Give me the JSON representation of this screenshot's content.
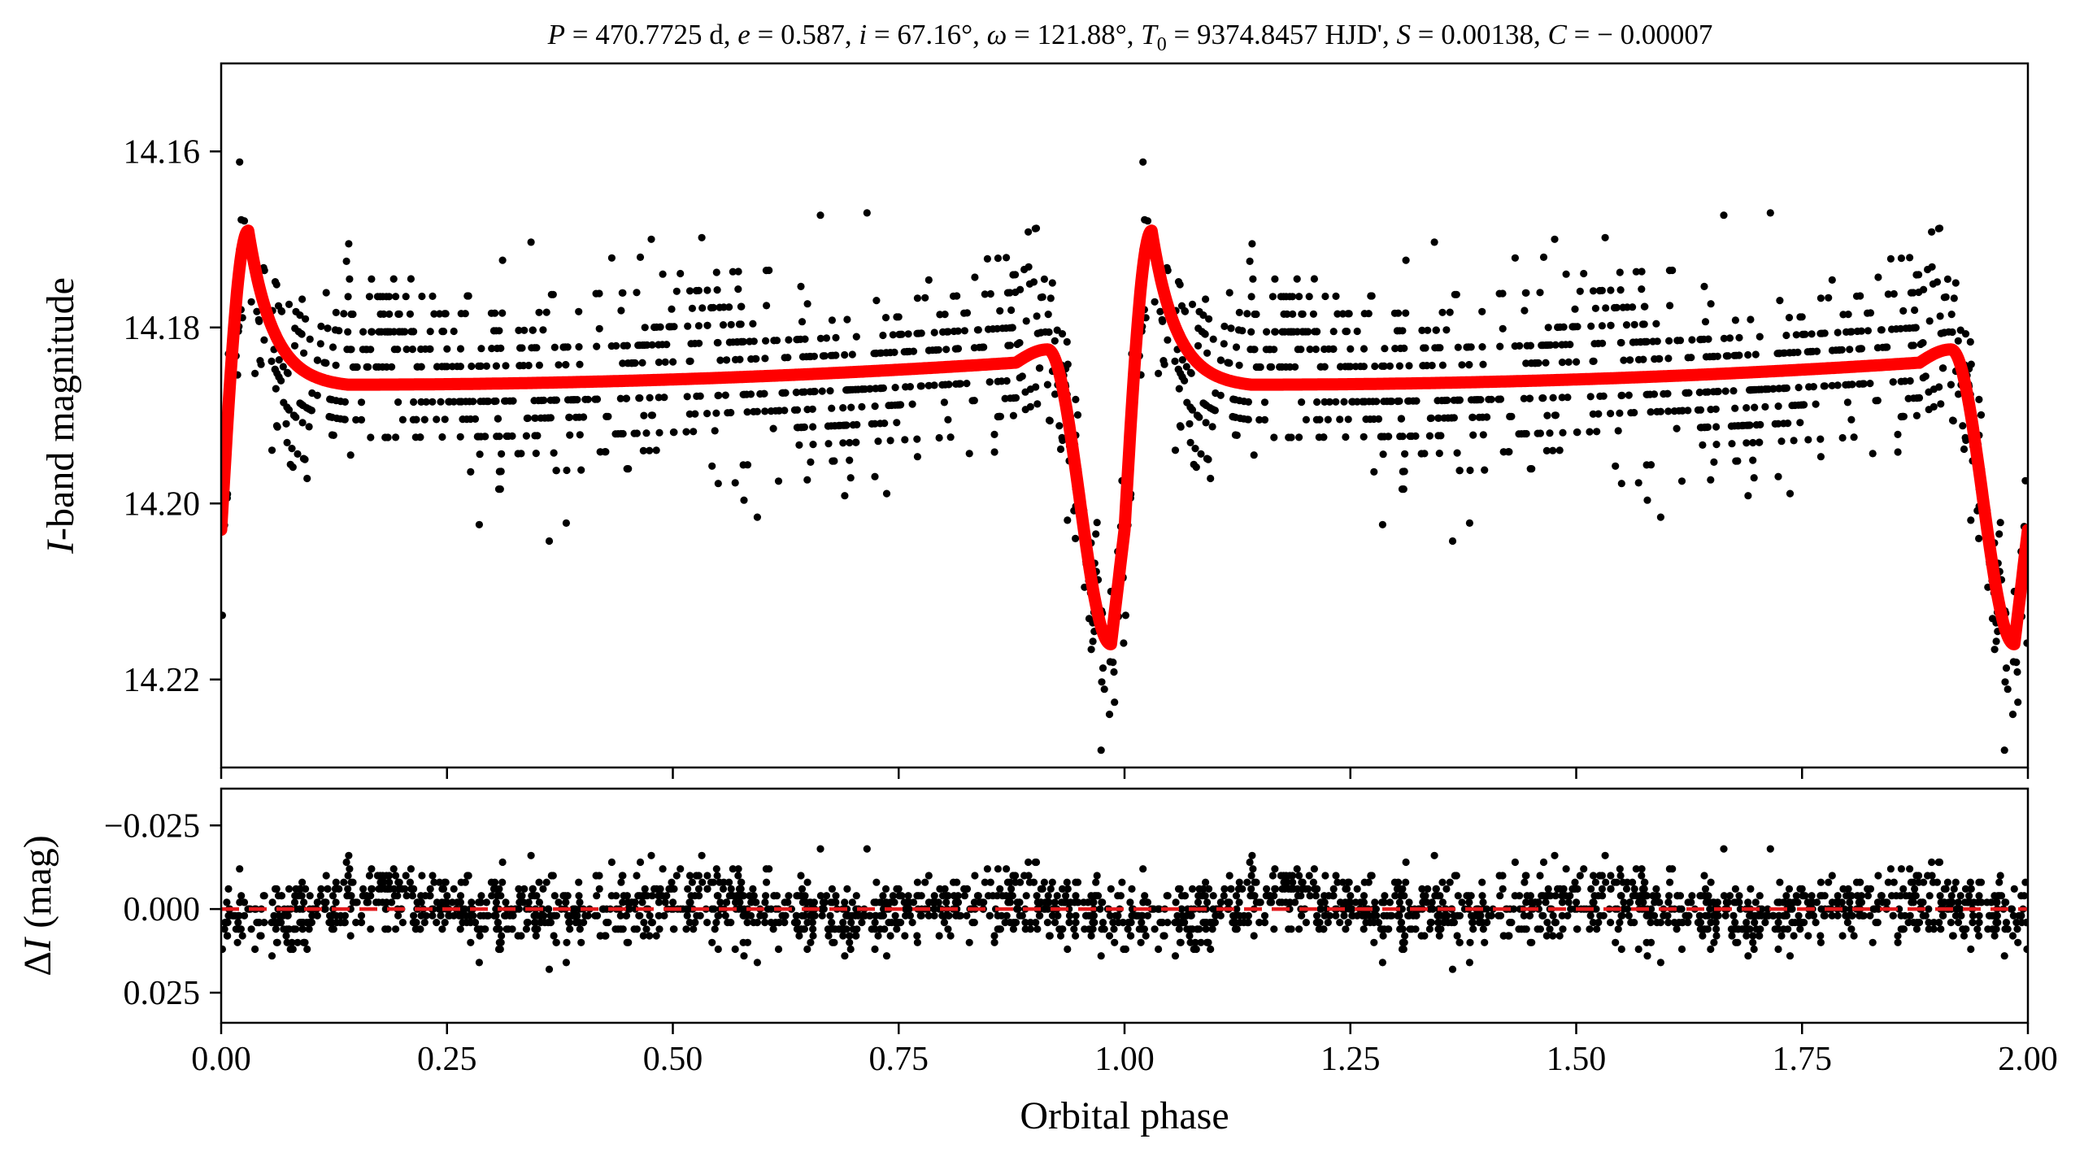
{
  "title": "P = 470.7725 d, e = 0.587, i = 67.16°, ω = 121.88°, T0 = 9374.8457 HJD', S = 0.00138, C = −0.00007",
  "title_parts": {
    "P_sym": "P",
    "P_val": " = 470.7725 d, ",
    "e_sym": "e",
    "e_val": " = 0.587, ",
    "i_sym": "i",
    "i_val": " = 67.16°, ",
    "w_sym": "ω",
    "w_val": " = 121.88°, ",
    "T_sym": "T",
    "T_sub": "0",
    "T_val": " = 9374.8457 HJD', ",
    "S_sym": "S",
    "S_val": " = 0.00138, ",
    "C_sym": "C",
    "C_val": " = − 0.00007"
  },
  "colors": {
    "points": "#000000",
    "model": "#ff0000",
    "zero_line": "#e41a1c"
  },
  "chart_data": [
    {
      "type": "scatter",
      "panel": "top",
      "xlabel": "Orbital phase",
      "ylabel_italic": "I",
      "ylabel_rest": "-band magnitude",
      "xlim": [
        0.0,
        2.0
      ],
      "ylim": [
        14.23,
        14.15
      ],
      "y_inverted": true,
      "yticks": [
        14.16,
        14.18,
        14.2,
        14.22
      ],
      "ytick_labels": [
        "14.16",
        "14.18",
        "14.20",
        "14.22"
      ],
      "xticks": [
        0.0,
        0.25,
        0.5,
        0.75,
        1.0,
        1.25,
        1.5,
        1.75,
        2.0
      ],
      "n_points_per_cycle": 1100,
      "model": {
        "P": 470.7725,
        "e": 0.587,
        "i": 67.16,
        "omega": 121.88,
        "T0": 9374.8457,
        "S": 0.00138,
        "C": -7e-05,
        "mean_mag": 14.185
      },
      "model_key_points": [
        [
          0.0,
          14.203
        ],
        [
          0.03,
          14.169
        ],
        [
          0.1,
          14.186
        ],
        [
          0.5,
          14.185
        ],
        [
          0.9,
          14.1825
        ],
        [
          0.95,
          14.195
        ],
        [
          0.985,
          14.216
        ],
        [
          1.0,
          14.203
        ],
        [
          1.03,
          14.169
        ],
        [
          1.5,
          14.185
        ],
        [
          1.985,
          14.216
        ],
        [
          2.0,
          14.203
        ]
      ],
      "scatter_sigma": 0.006
    },
    {
      "type": "scatter",
      "panel": "bottom",
      "xlabel": "Orbital phase",
      "ylabel_prefix": "Δ",
      "ylabel_italic": "I",
      "ylabel_rest": " (mag)",
      "xlim": [
        0.0,
        2.0
      ],
      "ylim": [
        0.034,
        -0.036
      ],
      "y_inverted": true,
      "yticks": [
        -0.025,
        0.0,
        0.025
      ],
      "ytick_labels": [
        "−0.025",
        "0.000",
        "0.025"
      ],
      "xticks": [
        0.0,
        0.25,
        0.5,
        0.75,
        1.0,
        1.25,
        1.5,
        1.75,
        2.0
      ],
      "xtick_labels": [
        "0.00",
        "0.25",
        "0.50",
        "0.75",
        "1.00",
        "1.25",
        "1.50",
        "1.75",
        "2.00"
      ],
      "reference_line_y": 0.0,
      "residual_sigma": 0.005
    }
  ]
}
